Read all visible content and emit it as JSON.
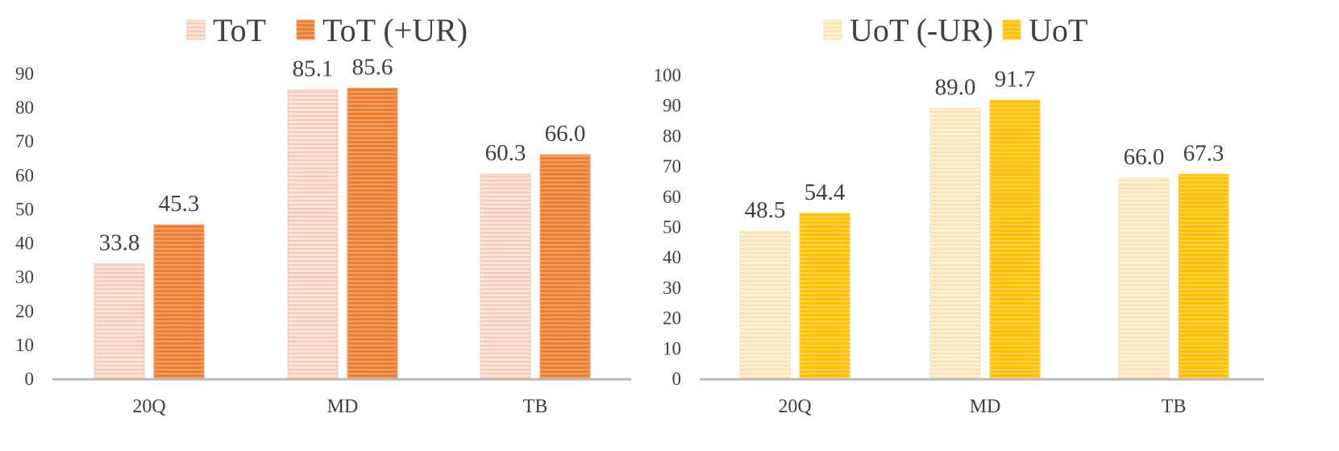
{
  "chart_data": [
    {
      "type": "bar",
      "categories": [
        "20Q",
        "MD",
        "TB"
      ],
      "series": [
        {
          "name": "ToT",
          "values": [
            33.8,
            85.1,
            60.3
          ],
          "value_labels": [
            "33.8",
            "85.1",
            "60.3"
          ],
          "color": "#fbe3d8",
          "stripe": "#f6c9b4"
        },
        {
          "name": "ToT (+UR)",
          "values": [
            45.3,
            85.6,
            66.0
          ],
          "value_labels": [
            "45.3",
            "85.6",
            "66.0"
          ],
          "color": "#ed7d31",
          "stripe": "#f4a06a"
        }
      ],
      "ylim": [
        0,
        90
      ],
      "yticks": [
        "0",
        "10",
        "20",
        "30",
        "40",
        "50",
        "60",
        "70",
        "80",
        "90"
      ],
      "legend_position": "top",
      "grid": false
    },
    {
      "type": "bar",
      "categories": [
        "20Q",
        "MD",
        "TB"
      ],
      "series": [
        {
          "name": "UoT (-UR)",
          "values": [
            48.5,
            89.0,
            66.0
          ],
          "value_labels": [
            "48.5",
            "89.0",
            "66.0"
          ],
          "color": "#fff0d6",
          "stripe": "#fbe0b0"
        },
        {
          "name": "UoT",
          "values": [
            54.4,
            91.7,
            67.3
          ],
          "value_labels": [
            "54.4",
            "91.7",
            "67.3"
          ],
          "color": "#ffc000",
          "stripe": "#ffd24d"
        }
      ],
      "ylim": [
        0,
        100
      ],
      "yticks": [
        "0",
        "10",
        "20",
        "30",
        "40",
        "50",
        "60",
        "70",
        "80",
        "90",
        "100"
      ],
      "legend_position": "top",
      "grid": false
    }
  ]
}
